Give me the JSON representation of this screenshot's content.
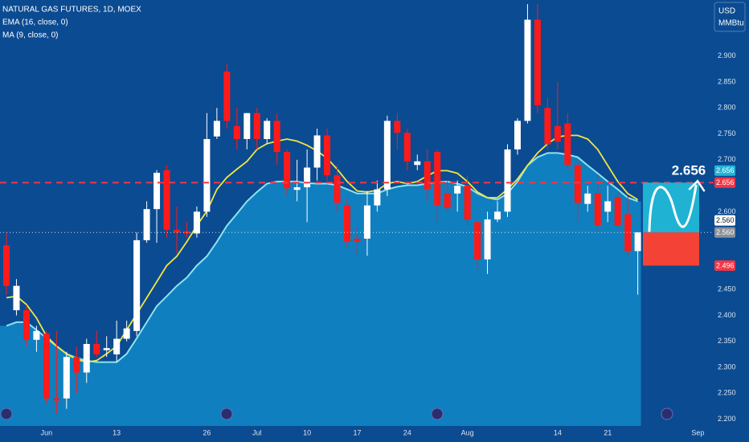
{
  "chart_data": {
    "type": "candlestick",
    "title": "NATURAL GAS FUTURES, 1D, MOEX",
    "currency": "USD",
    "unit": "MMBtu",
    "up_color": "#ffffff",
    "down_color": "#ff1a1a",
    "ylim": [
      2.187,
      3.008
    ],
    "yticks": [
      {
        "value": 2.2,
        "label": "2.200"
      },
      {
        "value": 2.25,
        "label": "2.250"
      },
      {
        "value": 2.3,
        "label": "2.300"
      },
      {
        "value": 2.35,
        "label": "2.350"
      },
      {
        "value": 2.4,
        "label": "2.400"
      },
      {
        "value": 2.45,
        "label": "2.450"
      },
      {
        "value": 2.6,
        "label": "2.600"
      },
      {
        "value": 2.7,
        "label": "2.700"
      },
      {
        "value": 2.75,
        "label": "2.750"
      },
      {
        "value": 2.8,
        "label": "2.800"
      },
      {
        "value": 2.85,
        "label": "2.850"
      },
      {
        "value": 2.9,
        "label": "2.900"
      }
    ],
    "grid": false,
    "categories": [
      null,
      null,
      null,
      null,
      "Jun",
      null,
      null,
      null,
      null,
      null,
      null,
      "13",
      null,
      null,
      null,
      null,
      null,
      null,
      null,
      null,
      "26",
      null,
      null,
      null,
      null,
      "Jul",
      null,
      null,
      null,
      null,
      "10",
      null,
      null,
      null,
      null,
      "17",
      null,
      null,
      null,
      null,
      "24",
      null,
      null,
      null,
      null,
      null,
      "Aug",
      null,
      null,
      null,
      null,
      null,
      null,
      null,
      null,
      "14",
      null,
      null,
      null,
      null,
      "21",
      null,
      null,
      null,
      null,
      null,
      null,
      null,
      null,
      "Sep",
      null
    ],
    "open": [
      2.535,
      2.41,
      2.41,
      2.353,
      2.365,
      2.24,
      2.24,
      2.32,
      2.29,
      2.345,
      2.333,
      2.325,
      2.355,
      2.37,
      2.545,
      2.605,
      2.68,
      2.565,
      2.562,
      2.558,
      2.6,
      2.745,
      2.87,
      2.765,
      2.74,
      2.79,
      2.74,
      2.775,
      2.715,
      2.642,
      2.647,
      2.685,
      2.747,
      2.67,
      2.612,
      2.548,
      2.548,
      2.612,
      2.643,
      2.775,
      2.752,
      2.69,
      2.697,
      2.715,
      2.635,
      2.635,
      2.65,
      2.58,
      2.508,
      2.585,
      2.6,
      2.72,
      2.775,
      2.97,
      2.8,
      2.765,
      2.77,
      2.69,
      2.615,
      2.635,
      2.6,
      2.628,
      2.595,
      2.524,
      null,
      null,
      null,
      null,
      null,
      null,
      null
    ],
    "high": [
      2.56,
      2.47,
      2.42,
      2.38,
      2.37,
      2.37,
      2.33,
      2.34,
      2.355,
      2.37,
      2.36,
      2.39,
      2.39,
      2.56,
      2.62,
      2.68,
      2.69,
      2.61,
      2.58,
      2.61,
      2.79,
      2.8,
      2.885,
      2.8,
      2.79,
      2.8,
      2.78,
      2.79,
      2.72,
      2.7,
      2.72,
      2.76,
      2.76,
      2.69,
      2.625,
      2.57,
      2.64,
      2.66,
      2.785,
      2.79,
      2.76,
      2.71,
      2.72,
      2.72,
      2.66,
      2.66,
      2.67,
      2.58,
      2.6,
      2.62,
      2.73,
      2.78,
      3.0,
      3.0,
      2.82,
      2.85,
      2.79,
      2.7,
      2.65,
      2.67,
      2.65,
      2.64,
      2.63,
      2.56,
      null,
      null,
      null,
      null,
      null,
      null,
      null
    ],
    "low": [
      2.44,
      2.4,
      2.34,
      2.33,
      2.23,
      2.21,
      2.22,
      2.25,
      2.27,
      2.32,
      2.32,
      2.31,
      2.35,
      2.36,
      2.54,
      2.54,
      2.55,
      2.52,
      2.55,
      2.55,
      2.59,
      2.74,
      2.76,
      2.72,
      2.72,
      2.72,
      2.73,
      2.69,
      2.63,
      2.62,
      2.58,
      2.66,
      2.66,
      2.6,
      2.53,
      2.515,
      2.515,
      2.6,
      2.63,
      2.72,
      2.68,
      2.68,
      2.62,
      2.58,
      2.6,
      2.6,
      2.575,
      2.49,
      2.48,
      2.58,
      2.59,
      2.71,
      2.77,
      2.79,
      2.72,
      2.72,
      2.68,
      2.58,
      2.6,
      2.56,
      2.58,
      2.56,
      2.515,
      2.44,
      null,
      null,
      null,
      null,
      null,
      null,
      null
    ],
    "close": [
      2.457,
      2.457,
      2.353,
      2.37,
      2.24,
      2.236,
      2.32,
      2.29,
      2.345,
      2.325,
      2.337,
      2.355,
      2.375,
      2.545,
      2.605,
      2.675,
      2.565,
      2.56,
      2.558,
      2.6,
      2.74,
      2.775,
      2.775,
      2.74,
      2.79,
      2.74,
      2.775,
      2.715,
      2.645,
      2.647,
      2.685,
      2.747,
      2.67,
      2.617,
      2.542,
      2.542,
      2.612,
      2.643,
      2.775,
      2.752,
      2.697,
      2.697,
      2.643,
      2.612,
      2.607,
      2.65,
      2.585,
      2.508,
      2.585,
      2.6,
      2.72,
      2.775,
      2.97,
      2.805,
      2.73,
      2.735,
      2.69,
      2.617,
      2.635,
      2.573,
      2.62,
      2.573,
      2.524,
      2.56,
      null,
      null,
      null,
      null,
      null,
      null,
      null
    ],
    "indicators": [
      {
        "name": "EMA (16, close, 0)",
        "color": "#8fe3ef",
        "fill": "#0f7fbf",
        "values": [
          2.38,
          2.387,
          2.387,
          2.372,
          2.356,
          2.341,
          2.326,
          2.318,
          2.313,
          2.31,
          2.31,
          2.31,
          2.326,
          2.356,
          2.387,
          2.418,
          2.437,
          2.457,
          2.473,
          2.496,
          2.514,
          2.542,
          2.573,
          2.596,
          2.62,
          2.638,
          2.654,
          2.658,
          2.658,
          2.658,
          2.655,
          2.654,
          2.654,
          2.651,
          2.643,
          2.635,
          2.635,
          2.635,
          2.643,
          2.648,
          2.651,
          2.651,
          2.654,
          2.657,
          2.658,
          2.654,
          2.648,
          2.635,
          2.627,
          2.623,
          2.635,
          2.658,
          2.689,
          2.705,
          2.713,
          2.713,
          2.71,
          2.705,
          2.689,
          2.674,
          2.658,
          2.643,
          2.627,
          2.62,
          null,
          null,
          null,
          null,
          null,
          null,
          null
        ]
      },
      {
        "name": "MA (9, close, 0)",
        "color": "#f2e640",
        "values": [
          2.434,
          2.437,
          2.421,
          2.395,
          2.36,
          2.341,
          2.326,
          2.315,
          2.31,
          2.313,
          2.326,
          2.341,
          2.372,
          2.403,
          2.434,
          2.465,
          2.496,
          2.514,
          2.542,
          2.573,
          2.601,
          2.643,
          2.666,
          2.682,
          2.697,
          2.72,
          2.731,
          2.736,
          2.74,
          2.736,
          2.728,
          2.717,
          2.703,
          2.682,
          2.658,
          2.64,
          2.638,
          2.641,
          2.654,
          2.658,
          2.654,
          2.658,
          2.669,
          2.679,
          2.679,
          2.674,
          2.658,
          2.638,
          2.627,
          2.627,
          2.643,
          2.663,
          2.689,
          2.713,
          2.731,
          2.744,
          2.747,
          2.747,
          2.74,
          2.72,
          2.689,
          2.658,
          2.635,
          2.623,
          null,
          null,
          null,
          null,
          null,
          null,
          null
        ]
      }
    ],
    "price_lines": [
      {
        "value": 2.656,
        "color": "#f23645",
        "style": "dashed"
      },
      {
        "value": 2.56,
        "color": "#ffffff",
        "style": "dotted"
      }
    ],
    "axis_tags": [
      {
        "value": 2.656,
        "label": "2.656",
        "color": "#22b5d6"
      },
      {
        "value": 2.656,
        "label": "2.656",
        "color": "#f23645"
      },
      {
        "value": 2.56,
        "label": "2.560",
        "color": "#ffffff"
      },
      {
        "value": 2.56,
        "label": "2.560",
        "color": "#8a9199"
      },
      {
        "value": 2.496,
        "label": "2.496",
        "color": "#f23645"
      }
    ],
    "position_tool": {
      "target": {
        "value": 2.656,
        "label": "2.656"
      },
      "entry": 2.56,
      "stop": 2.496,
      "profit_color": "#1fb2d3",
      "loss_color": "#f44336"
    }
  }
}
